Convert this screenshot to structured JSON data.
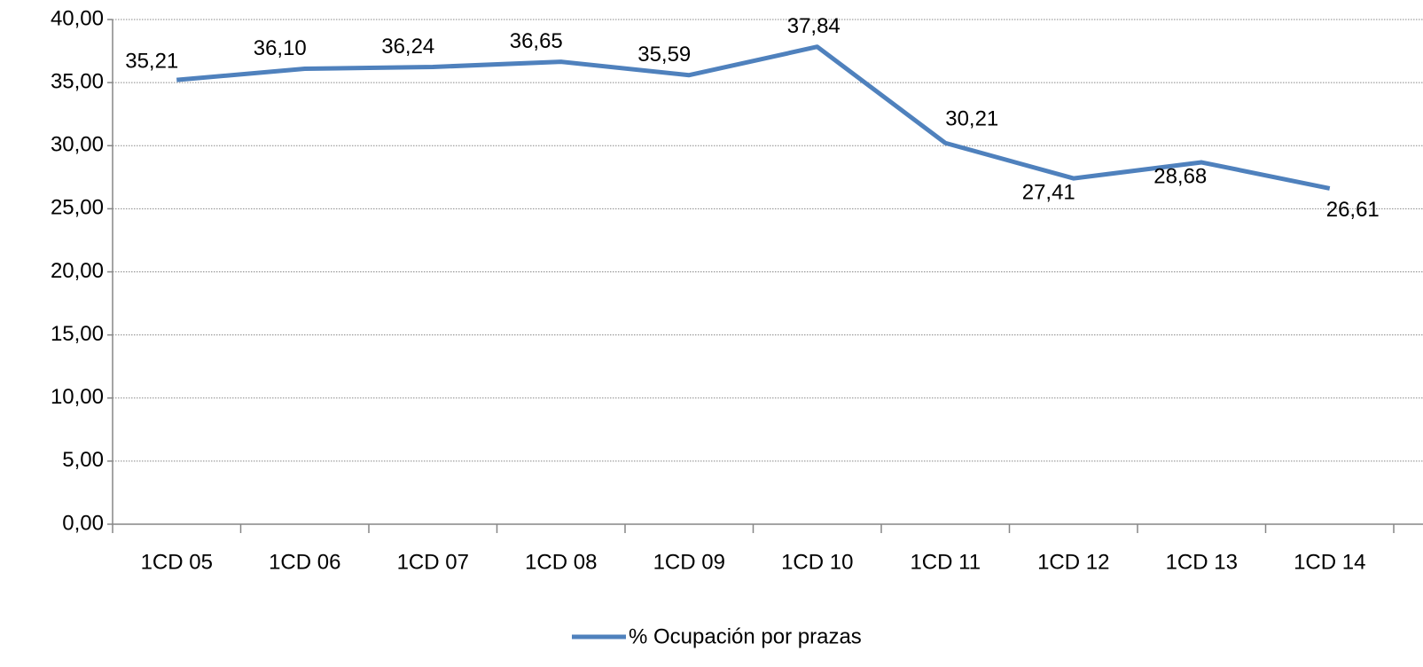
{
  "chart_data": {
    "type": "line",
    "categories": [
      "1CD 05",
      "1CD 06",
      "1CD 07",
      "1CD 08",
      "1CD 09",
      "1CD 10",
      "1CD 11",
      "1CD 12",
      "1CD 13",
      "1CD 14"
    ],
    "series": [
      {
        "name": "% Ocupación por prazas",
        "color": "#4f81bd",
        "values": [
          35.21,
          36.1,
          36.24,
          36.65,
          35.59,
          37.84,
          30.21,
          27.41,
          28.68,
          26.61
        ],
        "value_labels": [
          "35,21",
          "36,10",
          "36,24",
          "36,65",
          "35,59",
          "37,84",
          "30,21",
          "27,41",
          "28,68",
          "26,61"
        ]
      }
    ],
    "ylim": [
      0,
      40
    ],
    "yticks": [
      {
        "value": 0,
        "label": "0,00"
      },
      {
        "value": 5,
        "label": "5,00"
      },
      {
        "value": 10,
        "label": "10,00"
      },
      {
        "value": 15,
        "label": "15,00"
      },
      {
        "value": 20,
        "label": "20,00"
      },
      {
        "value": 25,
        "label": "25,00"
      },
      {
        "value": 30,
        "label": "30,00"
      },
      {
        "value": 35,
        "label": "35,00"
      },
      {
        "value": 40,
        "label": "40,00"
      }
    ],
    "grid": true,
    "legend": "bottom"
  }
}
